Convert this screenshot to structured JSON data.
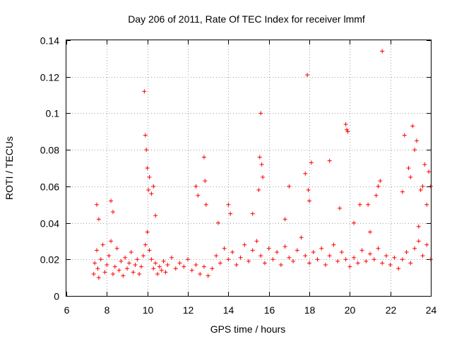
{
  "chart_data": {
    "type": "scatter",
    "title": "Day 206 of 2011, Rate Of TEC Index for receiver lmmf",
    "xlabel": "GPS time / hours",
    "ylabel": "ROTI / TECUs",
    "xlim": [
      6,
      24
    ],
    "ylim": [
      0,
      0.14
    ],
    "x_ticks": [
      "6",
      "8",
      "10",
      "12",
      "14",
      "16",
      "18",
      "20",
      "22",
      "24"
    ],
    "y_ticks": [
      "0",
      "0.02",
      "0.04",
      "0.06",
      "0.08",
      "0.1",
      "0.12",
      "0.14"
    ],
    "grid": true,
    "marker": "+",
    "color": "#ff0000",
    "series": [
      {
        "x": [
          7.35,
          7.4,
          7.5,
          7.55,
          7.6,
          7.7,
          7.8,
          7.9,
          8.0,
          8.1,
          8.2,
          8.3,
          8.4,
          8.5,
          8.6,
          8.7,
          8.8,
          8.9,
          9.0,
          9.1,
          9.2,
          9.3,
          9.4,
          9.5,
          9.6,
          9.7,
          9.8,
          9.9,
          10.0,
          10.1,
          10.2,
          10.3,
          10.4,
          10.5,
          10.6,
          10.7,
          10.8,
          10.9,
          11.0,
          11.2,
          11.4,
          11.6,
          11.8,
          12.0,
          12.2,
          12.4,
          12.6,
          12.8,
          13.0,
          13.2,
          13.4,
          13.6,
          13.8,
          14.0,
          14.2,
          14.4,
          14.6,
          14.8,
          15.0,
          15.2,
          15.4,
          15.6,
          15.8,
          16.0,
          16.2,
          16.4,
          16.6,
          16.8,
          17.0,
          17.2,
          17.4,
          17.6,
          17.8,
          18.0,
          18.2,
          18.4,
          18.6,
          18.8,
          19.0,
          19.2,
          19.4,
          19.6,
          19.8,
          20.0,
          20.2,
          20.4,
          20.6,
          20.8,
          21.0,
          21.2,
          21.4,
          21.6,
          21.8,
          22.0,
          22.2,
          22.4,
          22.6,
          22.8,
          23.0,
          23.2,
          23.4,
          23.6,
          23.8,
          24.0,
          7.5,
          7.6,
          8.2,
          8.3,
          9.85,
          9.9,
          9.95,
          10.0,
          10.05,
          10.1,
          10.2,
          10.3,
          10.4,
          12.4,
          12.5,
          12.8,
          12.85,
          12.9,
          14.0,
          14.1,
          15.5,
          15.55,
          15.6,
          15.65,
          15.7,
          17.0,
          17.8,
          17.9,
          17.95,
          18.0,
          18.1,
          19.0,
          19.5,
          19.8,
          19.85,
          19.9,
          20.5,
          20.9,
          21.3,
          21.4,
          21.5,
          21.6,
          22.6,
          22.7,
          22.9,
          23.0,
          23.1,
          23.2,
          23.3,
          23.5,
          23.6,
          23.7,
          23.8,
          23.9,
          24.0,
          13.5,
          15.2,
          16.8,
          20.2,
          21.0,
          23.4
        ],
        "y": [
          0.012,
          0.018,
          0.025,
          0.015,
          0.01,
          0.02,
          0.028,
          0.013,
          0.017,
          0.022,
          0.03,
          0.012,
          0.016,
          0.026,
          0.014,
          0.019,
          0.011,
          0.021,
          0.015,
          0.018,
          0.024,
          0.013,
          0.017,
          0.02,
          0.012,
          0.016,
          0.022,
          0.028,
          0.035,
          0.025,
          0.02,
          0.015,
          0.018,
          0.012,
          0.016,
          0.014,
          0.019,
          0.013,
          0.017,
          0.021,
          0.015,
          0.018,
          0.016,
          0.02,
          0.014,
          0.017,
          0.012,
          0.016,
          0.011,
          0.015,
          0.022,
          0.018,
          0.026,
          0.02,
          0.024,
          0.017,
          0.021,
          0.028,
          0.019,
          0.025,
          0.03,
          0.022,
          0.018,
          0.026,
          0.02,
          0.024,
          0.017,
          0.027,
          0.021,
          0.019,
          0.025,
          0.032,
          0.022,
          0.018,
          0.024,
          0.02,
          0.026,
          0.017,
          0.022,
          0.028,
          0.019,
          0.024,
          0.02,
          0.016,
          0.021,
          0.018,
          0.025,
          0.019,
          0.023,
          0.02,
          0.026,
          0.018,
          0.022,
          0.017,
          0.021,
          0.015,
          0.02,
          0.024,
          0.018,
          0.026,
          0.03,
          0.022,
          0.028,
          0.02,
          0.05,
          0.042,
          0.052,
          0.046,
          0.112,
          0.088,
          0.08,
          0.07,
          0.058,
          0.065,
          0.056,
          0.06,
          0.044,
          0.06,
          0.055,
          0.076,
          0.063,
          0.05,
          0.05,
          0.045,
          0.058,
          0.076,
          0.1,
          0.072,
          0.065,
          0.06,
          0.067,
          0.121,
          0.058,
          0.052,
          0.073,
          0.074,
          0.048,
          0.094,
          0.091,
          0.09,
          0.05,
          0.05,
          0.055,
          0.06,
          0.063,
          0.134,
          0.057,
          0.088,
          0.07,
          0.065,
          0.093,
          0.08,
          0.085,
          0.058,
          0.06,
          0.072,
          0.05,
          0.068,
          0.06,
          0.04,
          0.045,
          0.042,
          0.04,
          0.035,
          0.038
        ]
      }
    ]
  }
}
